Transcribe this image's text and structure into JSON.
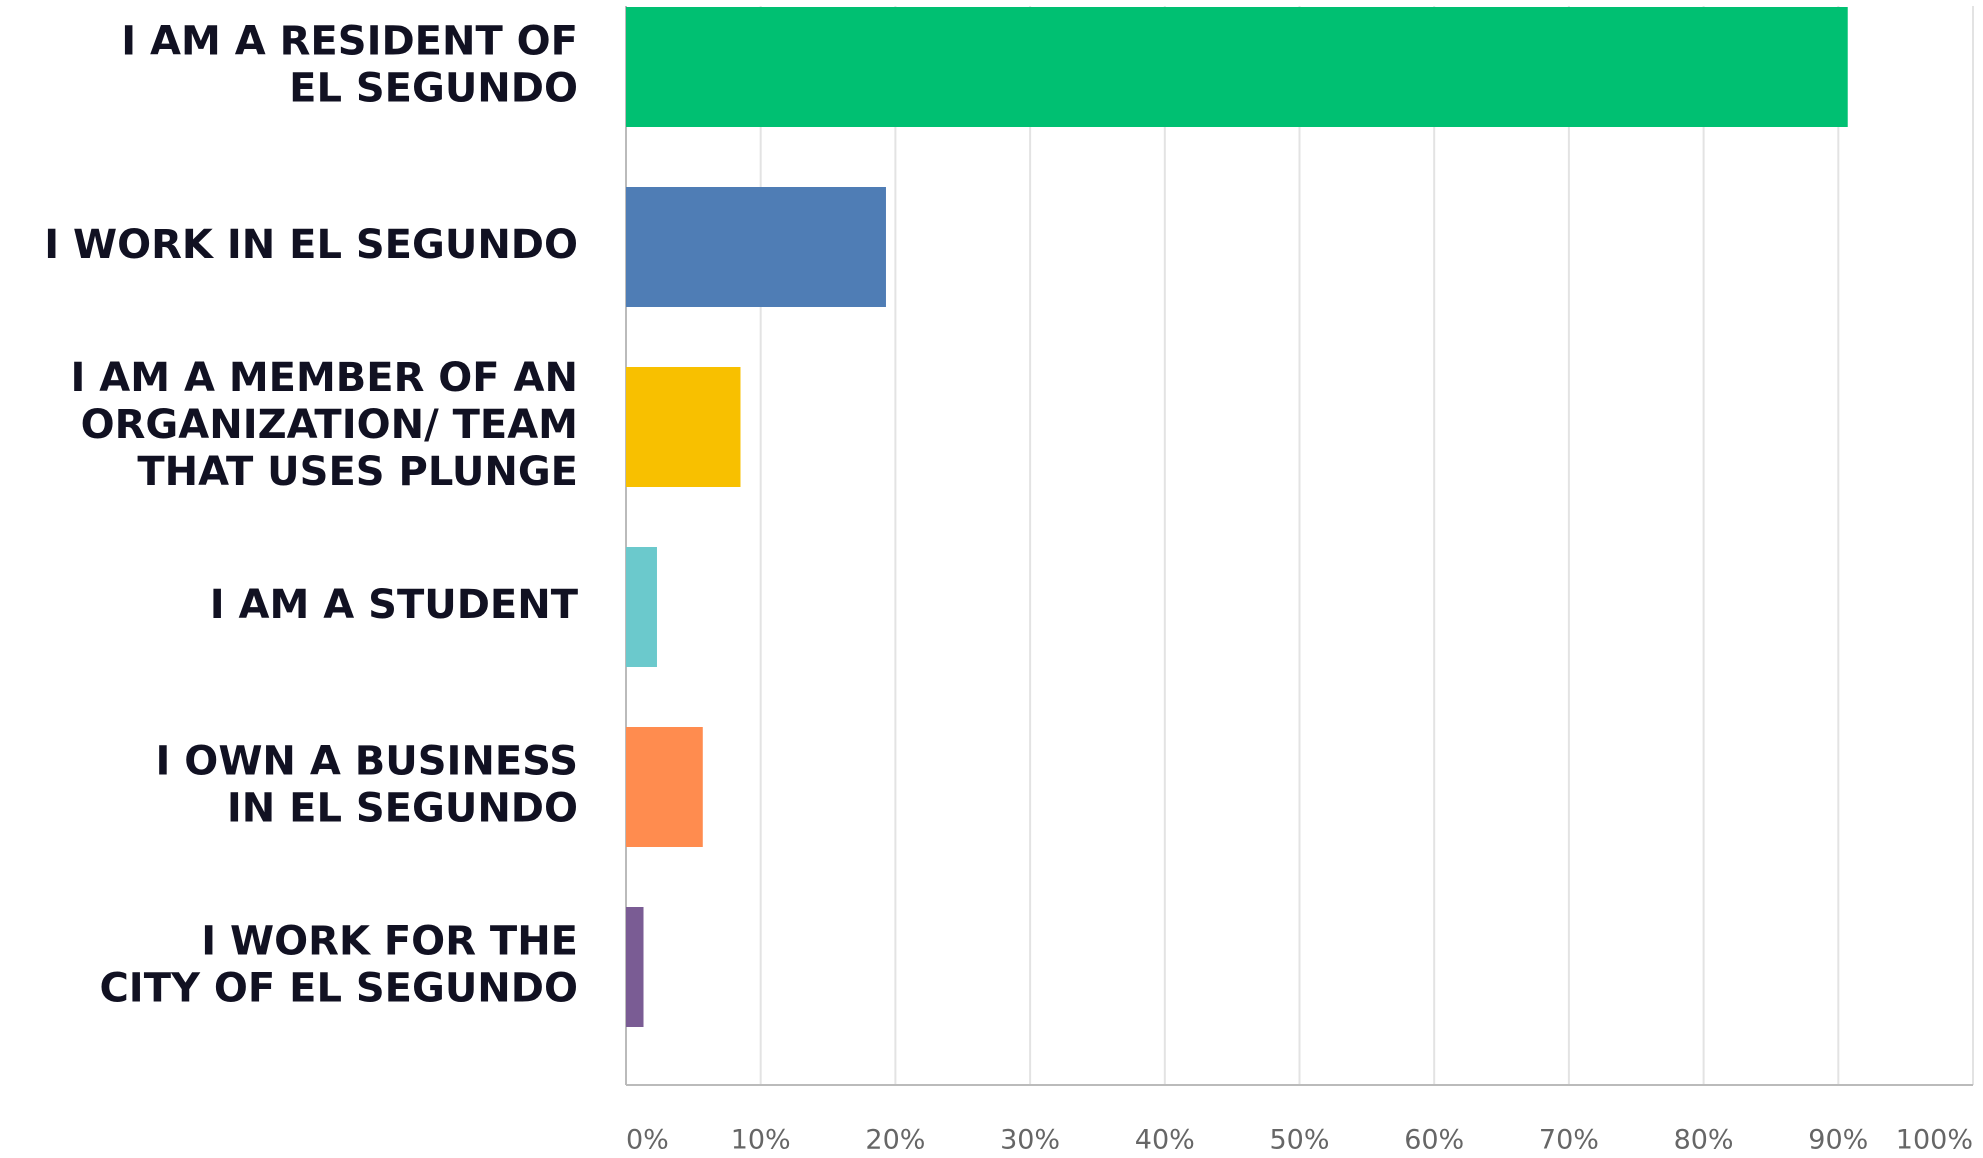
{
  "chart_data": {
    "type": "hbar",
    "categories": [
      [
        "I AM A RESIDENT OF",
        "EL SEGUNDO"
      ],
      [
        "I WORK IN EL SEGUNDO"
      ],
      [
        "I AM A MEMBER OF AN",
        "ORGANIZATION/ TEAM",
        "THAT USES PLUNGE"
      ],
      [
        "I AM A STUDENT"
      ],
      [
        "I OWN A BUSINESS",
        "IN EL SEGUNDO"
      ],
      [
        "I WORK FOR THE",
        "CITY OF EL SEGUNDO"
      ]
    ],
    "values": [
      90.7,
      19.3,
      8.5,
      2.3,
      5.7,
      1.3
    ],
    "colors": [
      "#00c072",
      "#4f7db5",
      "#f8c000",
      "#6bc9cc",
      "#ff8c4f",
      "#7a5c94"
    ],
    "xlim": [
      0,
      100
    ],
    "xticks": [
      {
        "value": 0,
        "label": "0%"
      },
      {
        "value": 10,
        "label": "10%"
      },
      {
        "value": 20,
        "label": "20%"
      },
      {
        "value": 30,
        "label": "30%"
      },
      {
        "value": 40,
        "label": "40%"
      },
      {
        "value": 50,
        "label": "50%"
      },
      {
        "value": 60,
        "label": "60%"
      },
      {
        "value": 70,
        "label": "70%"
      },
      {
        "value": 80,
        "label": "80%"
      },
      {
        "value": 90,
        "label": "90%"
      },
      {
        "value": 100,
        "label": "100%"
      }
    ],
    "grid": true
  }
}
